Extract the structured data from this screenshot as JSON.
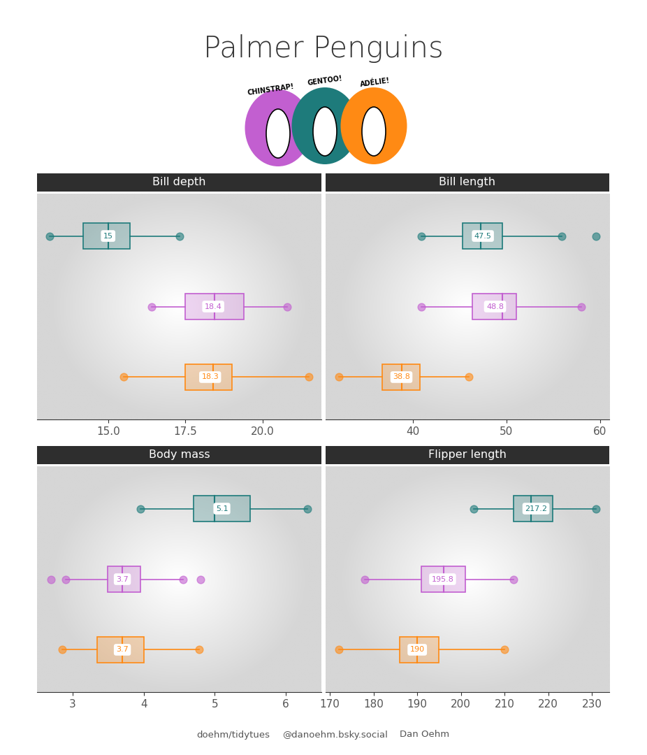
{
  "title": "Palmer Penguins",
  "header_labels": [
    {
      "text": "CHINSTRAP!",
      "color": "#c25fd0"
    },
    {
      "text": "GENTOO!",
      "color": "#1e7b7b"
    },
    {
      "text": "ADÉLIE!",
      "color": "#ff8a14"
    }
  ],
  "footer": [
    "doehm/tidytues",
    "@danoehm.bsky.social",
    "Dan Oehm"
  ],
  "chart_data": [
    {
      "type": "box",
      "title": "Bill depth",
      "orientation": "horizontal",
      "data_labels": true,
      "tick_labels": "x",
      "xlim": [
        12.7,
        21.9
      ],
      "xticks": [
        {
          "value": 15,
          "label": "15.0"
        },
        {
          "value": 17.5,
          "label": "17.5"
        },
        {
          "value": 20,
          "label": "20.0"
        }
      ],
      "series": [
        {
          "color": "#1e7b7b",
          "min": 13.1,
          "q1": 14.2,
          "median": 15.0,
          "q3": 15.7,
          "max": 17.3,
          "outliers": [],
          "mean": 15
        },
        {
          "color": "#c25fd0",
          "min": 16.4,
          "q1": 17.5,
          "median": 18.45,
          "q3": 19.4,
          "max": 20.8,
          "outliers": [],
          "mean": 18.4
        },
        {
          "color": "#ff8a14",
          "min": 15.5,
          "q1": 17.5,
          "median": 18.4,
          "q3": 19.0,
          "max": 21.5,
          "outliers": [],
          "mean": 18.3
        }
      ]
    },
    {
      "type": "box",
      "title": "Bill length",
      "orientation": "horizontal",
      "data_labels": true,
      "tick_labels": "x",
      "xlim": [
        30.7,
        61
      ],
      "xticks": [
        40,
        50,
        60
      ],
      "series": [
        {
          "color": "#1e7b7b",
          "min": 40.9,
          "q1": 45.3,
          "median": 47.3,
          "q3": 49.55,
          "max": 55.9,
          "outliers": [
            59.6
          ],
          "mean": 47.5
        },
        {
          "color": "#c25fd0",
          "min": 40.9,
          "q1": 46.35,
          "median": 49.55,
          "q3": 51.08,
          "max": 58.0,
          "outliers": [],
          "mean": 48.8
        },
        {
          "color": "#ff8a14",
          "min": 32.1,
          "q1": 36.75,
          "median": 38.8,
          "q3": 40.75,
          "max": 46.0,
          "outliers": [],
          "mean": 38.8
        }
      ]
    },
    {
      "type": "box",
      "title": "Body mass",
      "orientation": "horizontal",
      "data_labels": true,
      "tick_labels": "x",
      "xlim": [
        2.5,
        6.5
      ],
      "xticks": [
        3,
        4,
        5,
        6
      ],
      "series": [
        {
          "color": "#1e7b7b",
          "min": 3.95,
          "q1": 4.7,
          "median": 5.0,
          "q3": 5.5,
          "max": 6.3,
          "outliers": [],
          "mean": 5.1
        },
        {
          "color": "#c25fd0",
          "min": 2.9,
          "q1": 3.49,
          "median": 3.7,
          "q3": 3.95,
          "max": 4.55,
          "outliers": [
            2.7,
            4.8
          ],
          "mean": 3.7
        },
        {
          "color": "#ff8a14",
          "min": 2.85,
          "q1": 3.35,
          "median": 3.7,
          "q3": 4.0,
          "max": 4.78,
          "outliers": [],
          "mean": 3.7
        }
      ]
    },
    {
      "type": "box",
      "title": "Flipper length",
      "orientation": "horizontal",
      "data_labels": true,
      "tick_labels": "x",
      "xlim": [
        169,
        234
      ],
      "xticks": [
        170,
        180,
        190,
        200,
        210,
        220,
        230
      ],
      "series": [
        {
          "color": "#1e7b7b",
          "min": 203,
          "q1": 212,
          "median": 216,
          "q3": 221,
          "max": 231,
          "outliers": [],
          "mean": 217.2
        },
        {
          "color": "#c25fd0",
          "min": 178,
          "q1": 191,
          "median": 196,
          "q3": 201,
          "max": 212,
          "outliers": [],
          "mean": 195.8
        },
        {
          "color": "#ff8a14",
          "min": 172,
          "q1": 186,
          "median": 190,
          "q3": 195,
          "max": 210,
          "outliers": [],
          "mean": 190
        }
      ]
    }
  ]
}
